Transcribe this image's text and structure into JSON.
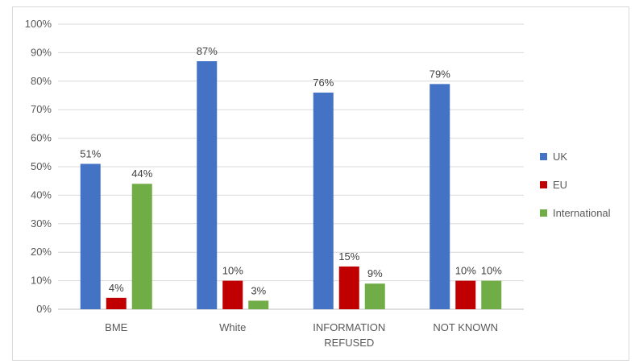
{
  "chart_data": {
    "type": "bar",
    "title": "",
    "xlabel": "",
    "ylabel": "",
    "categories": [
      [
        "BME"
      ],
      [
        "White"
      ],
      [
        "INFORMATION",
        "REFUSED"
      ],
      [
        "NOT KNOWN"
      ]
    ],
    "series": [
      {
        "name": "UK",
        "color": "#4472C4",
        "values": [
          51,
          87,
          76,
          79
        ],
        "labels": [
          "51%",
          "87%",
          "76%",
          "79%"
        ]
      },
      {
        "name": "EU",
        "color": "#C00000",
        "values": [
          4,
          10,
          15,
          10
        ],
        "labels": [
          "4%",
          "10%",
          "15%",
          "10%"
        ]
      },
      {
        "name": "International",
        "color": "#70AD47",
        "values": [
          44,
          3,
          9,
          10
        ],
        "labels": [
          "44%",
          "3%",
          "9%",
          "10%"
        ]
      }
    ],
    "ylim": [
      0,
      100
    ],
    "yticks": [
      "0%",
      "10%",
      "20%",
      "30%",
      "40%",
      "50%",
      "60%",
      "70%",
      "80%",
      "90%",
      "100%"
    ],
    "grid": true,
    "legend_position": "right"
  }
}
